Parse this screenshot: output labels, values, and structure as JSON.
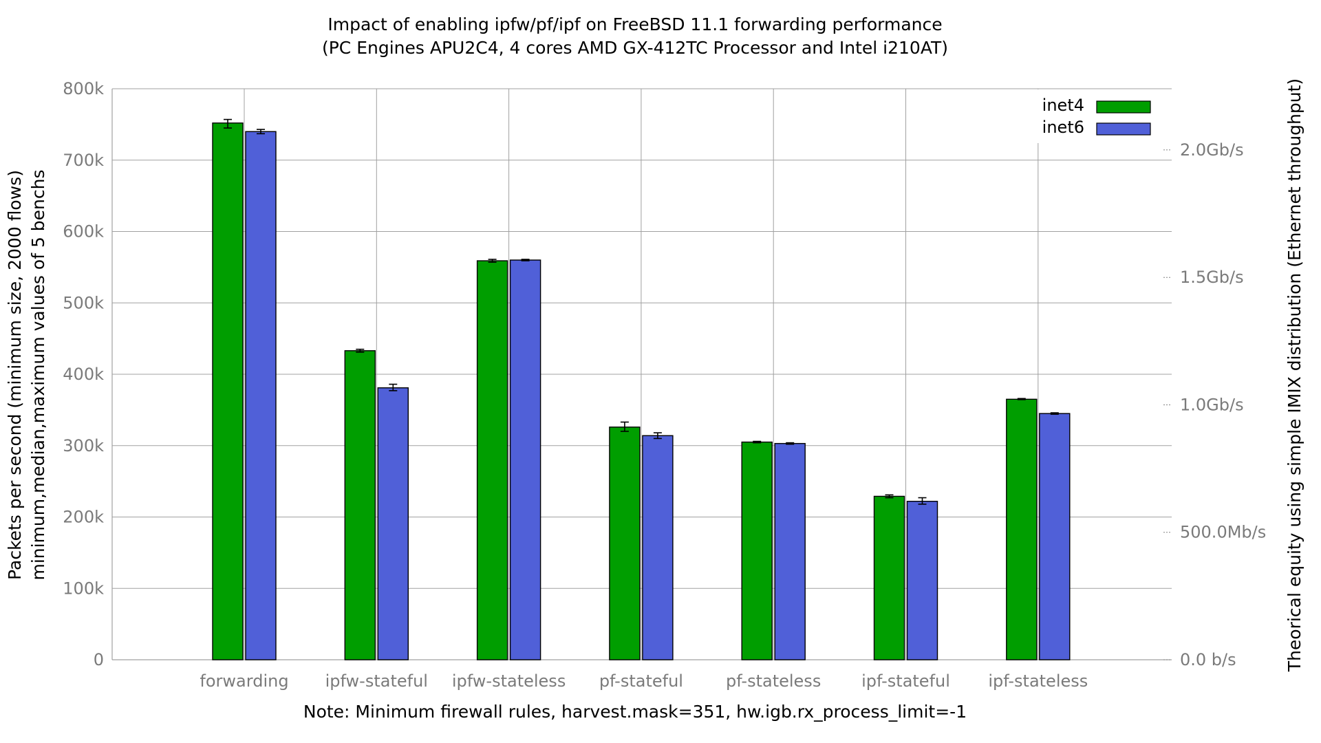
{
  "chart_data": {
    "type": "bar",
    "title": "Impact of enabling ipfw/pf/ipf on FreeBSD 11.1 forwarding performance",
    "subtitle": "(PC Engines APU2C4, 4 cores AMD GX-412TC Processor and Intel i210AT)",
    "ylabel": "Packets per second (minimum size, 2000 flows)",
    "ylabel2": "minimum,median,maximum values of 5 benchs",
    "y2label": "Theorical equity using simple IMIX distribution (Ethernet throughput)",
    "xlabel": "Note: Minimum firewall rules, harvest.mask=351, hw.igb.rx_process_limit=-1",
    "ylim": [
      0,
      800000
    ],
    "y_ticks": [
      0,
      100000,
      200000,
      300000,
      400000,
      500000,
      600000,
      700000,
      800000
    ],
    "y_tick_labels": [
      "0",
      "100k",
      "200k",
      "300k",
      "400k",
      "500k",
      "600k",
      "700k",
      "800k"
    ],
    "y2_ticks": [
      0,
      500,
      1000,
      1500,
      2000
    ],
    "y2_tick_labels": [
      "0.0 b/s",
      "500.0Mb/s",
      "1.0Gb/s",
      "1.5Gb/s",
      "2.0Gb/s"
    ],
    "y2_unit": "Mb/s",
    "y2_per_pps": 0.0028,
    "grid": true,
    "legend_position": "top-right",
    "categories": [
      "forwarding",
      "ipfw-stateful",
      "ipfw-stateless",
      "pf-stateful",
      "pf-stateless",
      "ipf-stateful",
      "ipf-stateless"
    ],
    "series": [
      {
        "name": "inet4",
        "color": "#009e00",
        "values": [
          752000,
          433000,
          559000,
          326000,
          305000,
          229000,
          365000
        ],
        "min": [
          745000,
          431000,
          557000,
          320000,
          304000,
          227000,
          364500
        ],
        "max": [
          757000,
          435000,
          561000,
          333000,
          306000,
          231000,
          366000
        ]
      },
      {
        "name": "inet6",
        "color": "#5060d8",
        "values": [
          740000,
          381000,
          560000,
          314000,
          303000,
          222000,
          345000
        ],
        "min": [
          737000,
          377000,
          559000,
          310000,
          302000,
          218000,
          344000
        ],
        "max": [
          743000,
          386000,
          561000,
          318000,
          304000,
          227000,
          346000
        ]
      }
    ]
  }
}
